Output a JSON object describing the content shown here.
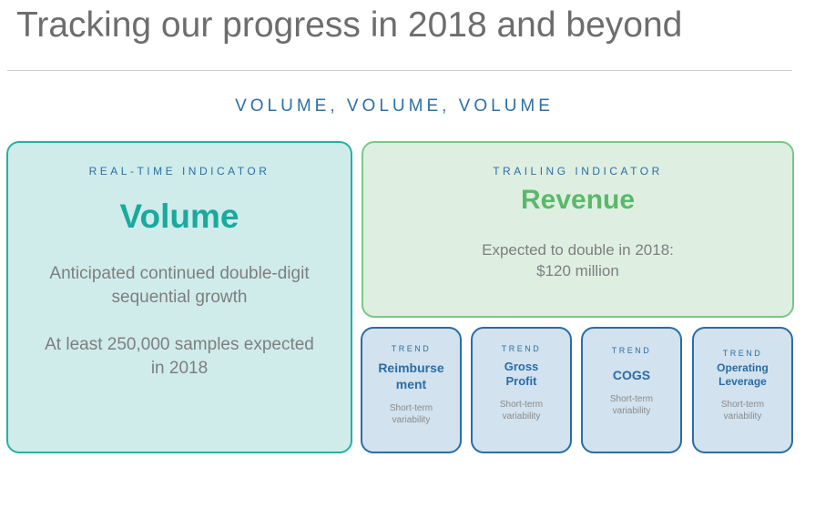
{
  "slide": {
    "title": "Tracking our progress in 2018 and beyond",
    "subtitle": "VOLUME, VOLUME, VOLUME"
  },
  "volume_box": {
    "label": "REAL-TIME INDICATOR",
    "title": "Volume",
    "text1_line1": "Anticipated continued double-digit",
    "text1_line2": "sequential growth",
    "text2_line1": "At least 250,000 samples expected",
    "text2_line2": "in 2018"
  },
  "revenue_box": {
    "label": "TRAILING INDICATOR",
    "title": "Revenue",
    "text_line1": "Expected to double in 2018:",
    "text_line2": "$120 million"
  },
  "trends": [
    {
      "label": "TREND",
      "name_line1": "Reimburse",
      "name_line2": "ment",
      "sub_line1": "Short-term",
      "sub_line2": "variability"
    },
    {
      "label": "TREND",
      "name_line1": "Gross",
      "name_line2": "Profit",
      "sub_line1": "Short-term",
      "sub_line2": "variability"
    },
    {
      "label": "TREND",
      "name_line1": "COGS",
      "name_line2": "",
      "sub_line1": "Short-term",
      "sub_line2": "variability"
    },
    {
      "label": "TREND",
      "name_line1": "Operating",
      "name_line2": "Leverage",
      "sub_line1": "Short-term",
      "sub_line2": "variability"
    }
  ]
}
